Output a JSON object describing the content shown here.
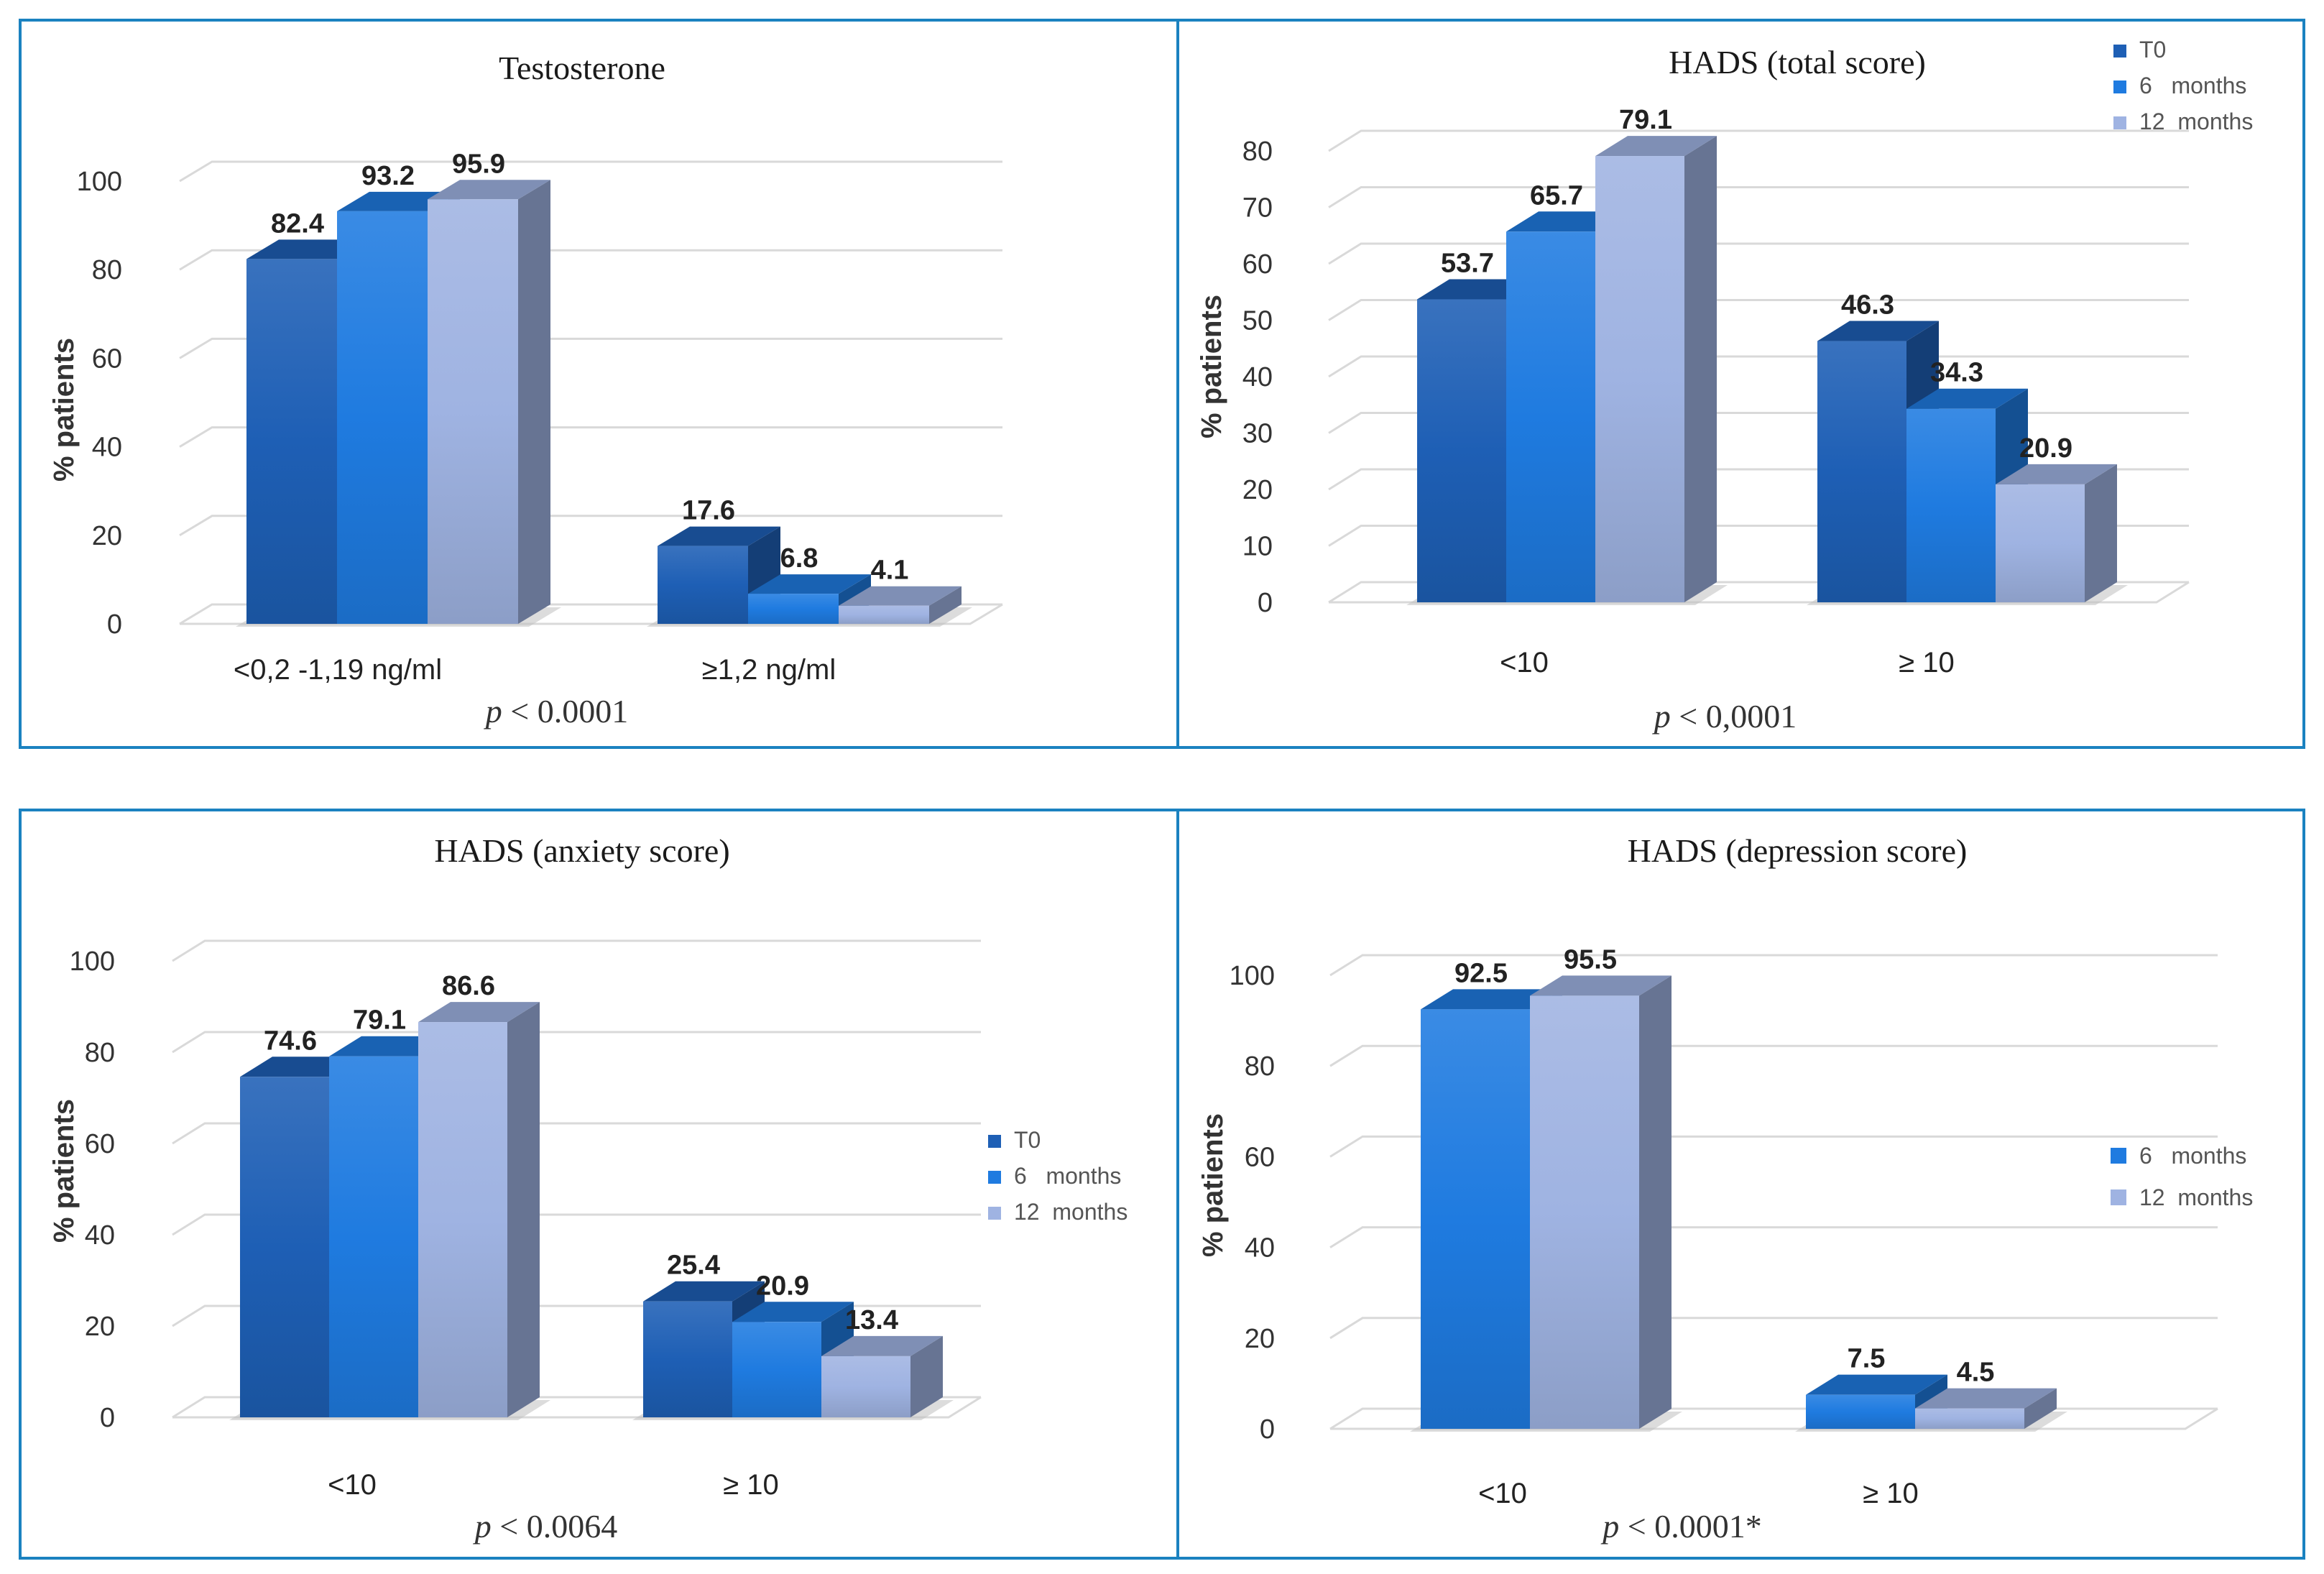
{
  "colors": {
    "T0": "#1e5fb5",
    "6 months": "#1f7be0",
    "12 months": "#9fb3e2",
    "border": "#1b82c0"
  },
  "chart_data": [
    {
      "id": "testosterone",
      "type": "bar",
      "title": "Testosterone",
      "ylabel": "% patients",
      "xlabel": "",
      "ylim": [
        0,
        100
      ],
      "yticks": [
        0,
        20,
        40,
        60,
        80,
        100
      ],
      "categories": [
        "<0,2 -1,19 ng/ml",
        "≥1,2 ng/ml"
      ],
      "series": [
        {
          "name": "T0",
          "values": [
            82.4,
            17.6
          ]
        },
        {
          "name": "6 months",
          "values": [
            93.2,
            6.8
          ]
        },
        {
          "name": "12 months",
          "values": [
            95.9,
            4.1
          ]
        }
      ],
      "value_labels": [
        [
          "82.4",
          "17.6"
        ],
        [
          "93.2",
          "6.8"
        ],
        [
          "95.9",
          "4.1"
        ]
      ],
      "p_prefix": "p",
      "p_rest": " < 0.0001",
      "legend": null
    },
    {
      "id": "hads-total",
      "type": "bar",
      "title": "HADS (total score)",
      "ylabel": "% patients",
      "xlabel": "",
      "ylim": [
        0,
        80
      ],
      "yticks": [
        0,
        10,
        20,
        30,
        40,
        50,
        60,
        70,
        80
      ],
      "categories": [
        "<10",
        "≥ 10"
      ],
      "series": [
        {
          "name": "T0",
          "values": [
            53.7,
            46.3
          ]
        },
        {
          "name": "6 months",
          "values": [
            65.7,
            34.3
          ]
        },
        {
          "name": "12 months",
          "values": [
            79.1,
            20.9
          ]
        }
      ],
      "value_labels": [
        [
          "53.7",
          "46.3"
        ],
        [
          "65.7",
          "34.3"
        ],
        [
          "79.1",
          "20.9"
        ]
      ],
      "p_prefix": "p",
      "p_rest": " < 0,0001",
      "legend": {
        "placement": "top-right",
        "items": [
          "T0",
          "6   months",
          "12  months"
        ]
      }
    },
    {
      "id": "hads-anxiety",
      "type": "bar",
      "title": "HADS (anxiety score)",
      "ylabel": "% patients",
      "xlabel": "",
      "ylim": [
        0,
        100
      ],
      "yticks": [
        0,
        20,
        40,
        60,
        80,
        100
      ],
      "categories": [
        "<10",
        "≥ 10"
      ],
      "series": [
        {
          "name": "T0",
          "values": [
            74.6,
            25.4
          ]
        },
        {
          "name": "6 months",
          "values": [
            79.1,
            20.9
          ]
        },
        {
          "name": "12 months",
          "values": [
            86.6,
            13.4
          ]
        }
      ],
      "value_labels": [
        [
          "74.6",
          "25.4"
        ],
        [
          "79.1",
          "20.9"
        ],
        [
          "86.6",
          "13.4"
        ]
      ],
      "p_prefix": "p",
      "p_rest": " < 0.0064",
      "legend": {
        "placement": "right",
        "items": [
          "T0",
          "6   months",
          "12  months"
        ]
      }
    },
    {
      "id": "hads-depression",
      "type": "bar",
      "title": "HADS (depression score)",
      "ylabel": "% patients",
      "xlabel": "",
      "ylim": [
        0,
        100
      ],
      "yticks": [
        0,
        20,
        40,
        60,
        80,
        100
      ],
      "categories": [
        "<10",
        "≥ 10"
      ],
      "series": [
        {
          "name": "6 months",
          "values": [
            92.5,
            7.5
          ]
        },
        {
          "name": "12 months",
          "values": [
            95.5,
            4.5
          ]
        }
      ],
      "value_labels": [
        [
          "92.5",
          "7.5"
        ],
        [
          "95.5",
          "4.5"
        ]
      ],
      "p_prefix": "p",
      "p_rest": " < 0.0001*",
      "legend": {
        "placement": "right",
        "items": [
          "6   months",
          "12  months"
        ]
      }
    }
  ]
}
